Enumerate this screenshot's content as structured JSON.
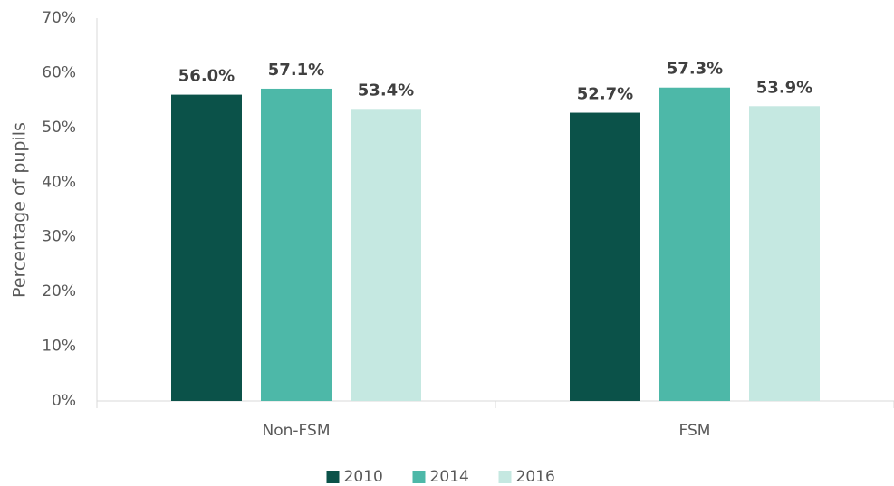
{
  "chart_data": {
    "type": "bar",
    "y_label": "Percentage of pupils",
    "categories": [
      "Non-FSM",
      "FSM"
    ],
    "series": [
      {
        "name": "2010",
        "color": "#0b5249",
        "values": [
          56.0,
          52.7
        ],
        "value_labels": [
          "56.0%",
          "52.7%"
        ]
      },
      {
        "name": "2014",
        "color": "#4db8a8",
        "values": [
          57.1,
          57.3
        ],
        "value_labels": [
          "57.1%",
          "57.3%"
        ]
      },
      {
        "name": "2016",
        "color": "#c5e8e1",
        "values": [
          53.4,
          53.9
        ],
        "value_labels": [
          "53.4%",
          "53.9%"
        ]
      }
    ],
    "ylim": [
      0,
      70
    ],
    "yticks": [
      {
        "value": 0,
        "label": "0%"
      },
      {
        "value": 10,
        "label": "10%"
      },
      {
        "value": 20,
        "label": "20%"
      },
      {
        "value": 30,
        "label": "30%"
      },
      {
        "value": 40,
        "label": "40%"
      },
      {
        "value": 50,
        "label": "50%"
      },
      {
        "value": 60,
        "label": "60%"
      },
      {
        "value": 70,
        "label": "70%"
      }
    ],
    "grid": false,
    "legend": "bottom"
  }
}
